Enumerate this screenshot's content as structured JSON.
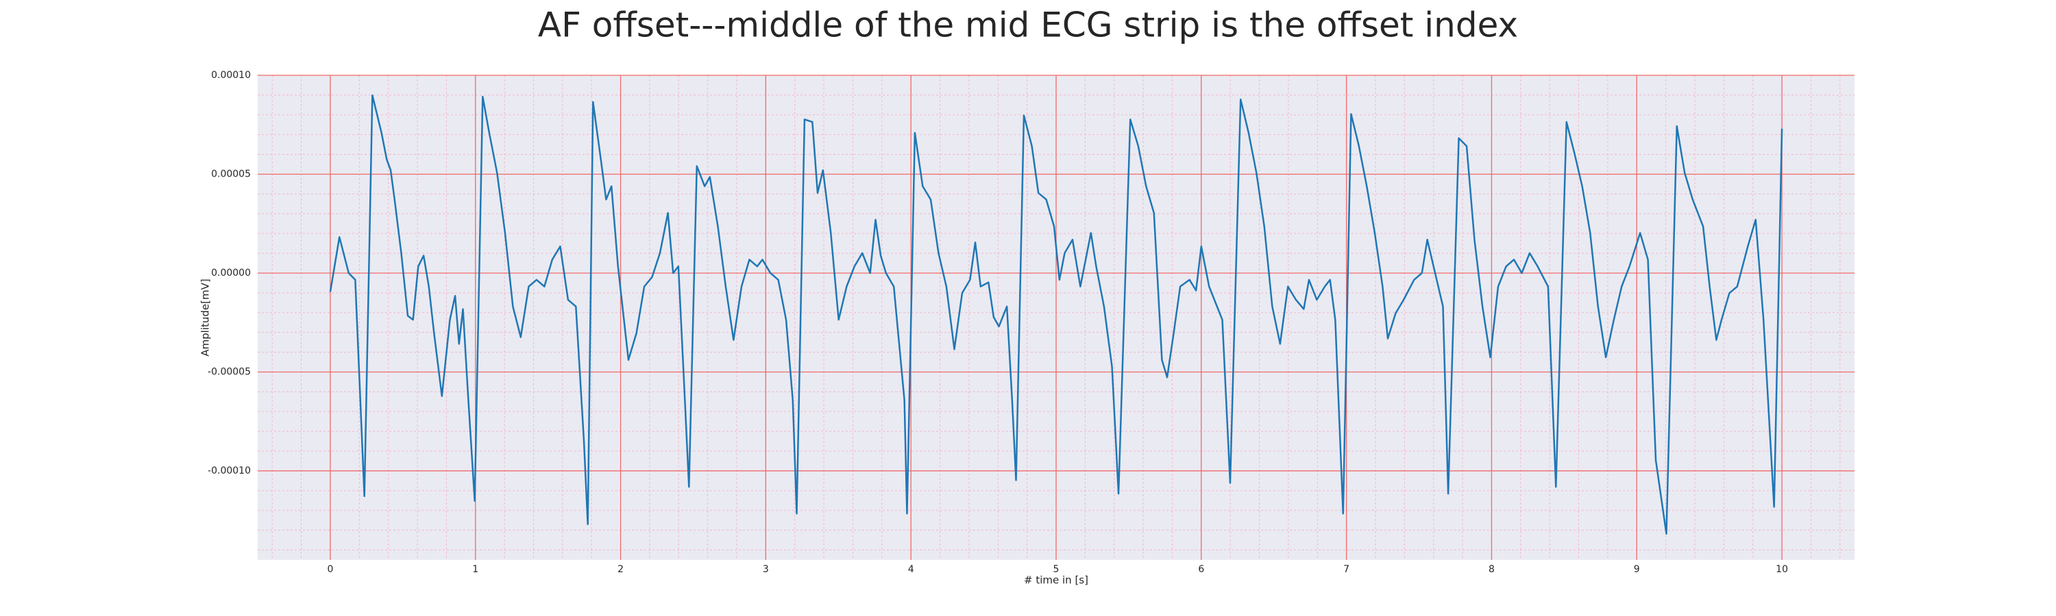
{
  "chart_data": {
    "type": "line",
    "title": "AF offset---middle of the mid ECG strip is the offset index",
    "xlabel": "# time in [s]",
    "ylabel": "Amplitude[mV]",
    "color": "#1f77b4",
    "grid": true,
    "minor_grid": true,
    "xlim": [
      -0.5,
      10.5
    ],
    "xticks": [
      0,
      1,
      2,
      3,
      4,
      5,
      6,
      7,
      8,
      9,
      10
    ],
    "ylim": [
      -0.000145,
      0.0001
    ],
    "yticks": [
      {
        "value": -0.0001,
        "label": "-0.00010"
      },
      {
        "value": -5e-05,
        "label": "-0.00005"
      },
      {
        "value": 0,
        "label": "0.00000"
      },
      {
        "value": 5e-05,
        "label": "0.00005"
      },
      {
        "value": 0.0001,
        "label": "0.00010"
      }
    ],
    "x": [
      0,
      0.063,
      0.127,
      0.172,
      0.235,
      0.29,
      0.353,
      0.389,
      0.416,
      0.443,
      0.489,
      0.534,
      0.57,
      0.606,
      0.643,
      0.679,
      0.715,
      0.769,
      0.824,
      0.86,
      0.887,
      0.914,
      0.95,
      0.995,
      1.05,
      1.095,
      1.149,
      1.204,
      1.258,
      1.312,
      1.367,
      1.421,
      1.475,
      1.529,
      1.584,
      1.638,
      1.692,
      1.747,
      1.774,
      1.81,
      1.864,
      1.9,
      1.937,
      1.982,
      2.018,
      2.054,
      2.109,
      2.163,
      2.217,
      2.271,
      2.326,
      2.362,
      2.398,
      2.434,
      2.471,
      2.525,
      2.579,
      2.615,
      2.67,
      2.724,
      2.778,
      2.833,
      2.887,
      2.941,
      2.977,
      3.032,
      3.086,
      3.14,
      3.186,
      3.213,
      3.267,
      3.321,
      3.357,
      3.394,
      3.448,
      3.502,
      3.557,
      3.611,
      3.665,
      3.719,
      3.756,
      3.792,
      3.828,
      3.882,
      3.955,
      3.973,
      4.027,
      4.081,
      4.136,
      4.19,
      4.244,
      4.299,
      4.353,
      4.407,
      4.443,
      4.48,
      4.534,
      4.57,
      4.606,
      4.661,
      4.697,
      4.724,
      4.778,
      4.833,
      4.878,
      4.932,
      4.986,
      5.023,
      5.059,
      5.113,
      5.167,
      5.24,
      5.276,
      5.33,
      5.385,
      5.43,
      5.511,
      5.566,
      5.62,
      5.674,
      5.729,
      5.765,
      5.81,
      5.855,
      5.919,
      5.964,
      6.0,
      6.054,
      6.145,
      6.199,
      6.271,
      6.326,
      6.38,
      6.434,
      6.489,
      6.543,
      6.597,
      6.652,
      6.706,
      6.742,
      6.796,
      6.851,
      6.887,
      6.923,
      6.977,
      7.032,
      7.086,
      7.14,
      7.195,
      7.249,
      7.285,
      7.339,
      7.394,
      7.466,
      7.52,
      7.557,
      7.611,
      7.665,
      7.701,
      7.774,
      7.828,
      7.882,
      7.937,
      7.991,
      8.045,
      8.1,
      8.154,
      8.208,
      8.262,
      8.317,
      8.389,
      8.443,
      8.516,
      8.57,
      8.624,
      8.679,
      8.733,
      8.787,
      8.842,
      8.896,
      8.95,
      9.023,
      9.077,
      9.131,
      9.204,
      9.276,
      9.33,
      9.385,
      9.457,
      9.502,
      9.548,
      9.584,
      9.638,
      9.692,
      9.765,
      9.819,
      9.873,
      9.946,
      10.0
    ],
    "values": [
      -9.5e-06,
      1.82e-05,
      0,
      -3.4e-06,
      -0.0001128,
      8.99e-05,
      7.09e-05,
      5.74e-05,
      5.2e-05,
      3.72e-05,
      1.01e-05,
      -2.16e-05,
      -2.36e-05,
      3.4e-06,
      8.8e-06,
      -6.8e-06,
      -3.04e-05,
      -6.22e-05,
      -2.36e-05,
      -1.15e-05,
      -3.58e-05,
      -1.82e-05,
      -6.28e-05,
      -0.0001152,
      8.92e-05,
      7.09e-05,
      5.07e-05,
      2.03e-05,
      -1.69e-05,
      -3.24e-05,
      -6.8e-06,
      -3.4e-06,
      -6.8e-06,
      6.8e-06,
      1.35e-05,
      -1.35e-05,
      -1.69e-05,
      -8.45e-05,
      -0.000127,
      8.65e-05,
      5.74e-05,
      3.72e-05,
      4.39e-05,
      3.4e-06,
      -2.03e-05,
      -4.39e-05,
      -3.04e-05,
      -6.8e-06,
      -2e-06,
      1.01e-05,
      3.04e-05,
      0,
      3.4e-06,
      -5.07e-05,
      -0.0001081,
      5.41e-05,
      4.39e-05,
      4.86e-05,
      2.36e-05,
      -6.8e-06,
      -3.38e-05,
      -6.8e-06,
      6.8e-06,
      3.4e-06,
      6.8e-06,
      0,
      -3.4e-06,
      -2.36e-05,
      -6.42e-05,
      -0.0001216,
      7.77e-05,
      7.64e-05,
      4.05e-05,
      5.2e-05,
      2.03e-05,
      -2.36e-05,
      -6.8e-06,
      3.4e-06,
      1.01e-05,
      0,
      2.7e-05,
      8.8e-06,
      0,
      -6.8e-06,
      -6.42e-05,
      -0.0001216,
      7.09e-05,
      4.39e-05,
      3.72e-05,
      1.01e-05,
      -6.8e-06,
      -3.85e-05,
      -1.01e-05,
      -3.4e-06,
      1.55e-05,
      -6.8e-06,
      -4.7e-06,
      -2.23e-05,
      -2.7e-05,
      -1.69e-05,
      -6.42e-05,
      -0.0001047,
      7.97e-05,
      6.42e-05,
      4.05e-05,
      3.72e-05,
      2.36e-05,
      -3.4e-06,
      1.01e-05,
      1.69e-05,
      -6.8e-06,
      2.03e-05,
      3.4e-06,
      -1.69e-05,
      -4.73e-05,
      -0.0001115,
      7.77e-05,
      6.42e-05,
      4.39e-05,
      3.04e-05,
      -4.39e-05,
      -5.27e-05,
      -3.04e-05,
      -6.8e-06,
      -3.4e-06,
      -8.8e-06,
      1.35e-05,
      -6.8e-06,
      -2.36e-05,
      -0.0001061,
      8.78e-05,
      7.09e-05,
      5.07e-05,
      2.36e-05,
      -1.69e-05,
      -3.58e-05,
      -6.8e-06,
      -1.35e-05,
      -1.82e-05,
      -3.4e-06,
      -1.35e-05,
      -6.8e-06,
      -3.4e-06,
      -2.36e-05,
      -0.0001216,
      8.04e-05,
      6.42e-05,
      4.39e-05,
      2.03e-05,
      -6.8e-06,
      -3.31e-05,
      -2.03e-05,
      -1.35e-05,
      -3.4e-06,
      0,
      1.69e-05,
      0,
      -1.69e-05,
      -0.0001115,
      6.82e-05,
      6.42e-05,
      1.69e-05,
      -1.69e-05,
      -4.26e-05,
      -6.8e-06,
      3.4e-06,
      6.8e-06,
      0,
      1.01e-05,
      3.4e-06,
      -6.8e-06,
      -0.0001081,
      7.64e-05,
      6.08e-05,
      4.39e-05,
      2.03e-05,
      -1.69e-05,
      -4.26e-05,
      -2.36e-05,
      -6.8e-06,
      3.4e-06,
      2.03e-05,
      6.8e-06,
      -9.46e-05,
      -0.0001318,
      7.43e-05,
      5.07e-05,
      3.72e-05,
      2.36e-05,
      -6.8e-06,
      -3.38e-05,
      -2.36e-05,
      -1.01e-05,
      -6.8e-06,
      1.35e-05,
      2.7e-05,
      -2.36e-05,
      -0.0001182,
      7.3e-05
    ]
  }
}
